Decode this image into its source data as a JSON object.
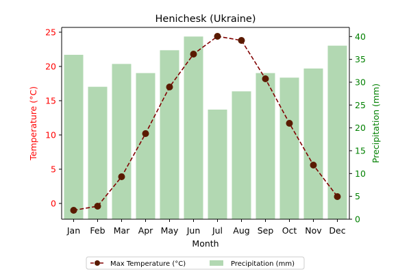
{
  "chart_data": {
    "type": "bar+line",
    "title": "Henichesk (Ukraine)",
    "xlabel": "Month",
    "categories": [
      "Jan",
      "Feb",
      "Mar",
      "Apr",
      "May",
      "Jun",
      "Jul",
      "Aug",
      "Sep",
      "Oct",
      "Nov",
      "Dec"
    ],
    "y_left": {
      "label": "Temperature (°C)",
      "color": "#ff0000",
      "lim": [
        -2.3,
        25.7
      ],
      "ticks": [
        0,
        5,
        10,
        15,
        20,
        25
      ]
    },
    "y_right": {
      "label": "Precipitation (mm)",
      "color": "#008000",
      "lim": [
        0,
        42
      ],
      "ticks": [
        0,
        5,
        10,
        15,
        20,
        25,
        30,
        35,
        40
      ]
    },
    "series": [
      {
        "name": "Max Temperature (°C)",
        "kind": "line",
        "axis": "left",
        "color": "#800000",
        "marker_color": "#5a1a00",
        "linestyle": "dashed",
        "marker": "circle",
        "values": [
          -1.0,
          -0.4,
          3.9,
          10.2,
          17.0,
          21.8,
          24.4,
          23.8,
          18.2,
          11.7,
          5.6,
          1.0
        ]
      },
      {
        "name": "Precipitation (mm)",
        "kind": "bar",
        "axis": "right",
        "color": "#b2d8b2",
        "values": [
          36,
          29,
          34,
          32,
          37,
          40,
          24,
          28,
          32,
          31,
          33,
          38
        ]
      }
    ],
    "legend_position": "bottom-center",
    "grid": false
  }
}
